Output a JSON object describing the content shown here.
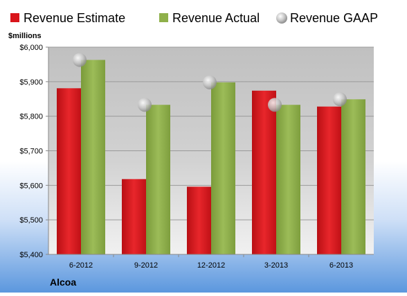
{
  "chart_data": {
    "type": "bar",
    "title": "",
    "ylabel": "$millions",
    "xlabel": "",
    "company": "Alcoa",
    "ylim": [
      5400,
      6000
    ],
    "yticks": [
      5400,
      5500,
      5600,
      5700,
      5800,
      5900,
      6000
    ],
    "ytick_labels": [
      "$5,400",
      "$5,500",
      "$5,600",
      "$5,700",
      "$5,800",
      "$5,900",
      "$6,000"
    ],
    "categories": [
      "6-2012",
      "9-2012",
      "12-2012",
      "3-2013",
      "6-2013"
    ],
    "grid": true,
    "legend_position": "top",
    "series": [
      {
        "name": "Revenue Estimate",
        "kind": "bar",
        "color": "#d9151b",
        "values": [
          5881,
          5618,
          5596,
          5874,
          5828
        ]
      },
      {
        "name": "Revenue Actual",
        "kind": "bar",
        "color": "#8fb04a",
        "values": [
          5963,
          5833,
          5898,
          5833,
          5849
        ]
      },
      {
        "name": "Revenue GAAP",
        "kind": "marker",
        "color": "#b8b8b8",
        "values": [
          5963,
          5833,
          5898,
          5833,
          5849
        ]
      }
    ]
  }
}
